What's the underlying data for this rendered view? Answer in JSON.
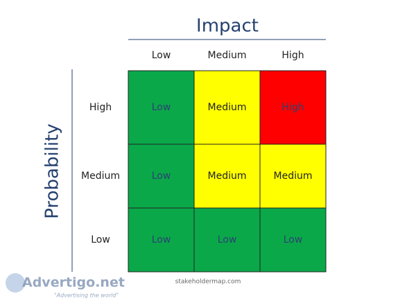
{
  "header": {
    "title": "Impact",
    "columns": [
      "Low",
      "Medium",
      "High"
    ]
  },
  "side": {
    "title": "Probability",
    "rows": [
      "High",
      "Medium",
      "Low"
    ]
  },
  "matrix": {
    "cells": [
      [
        {
          "label": "Low",
          "color": "#0ba84a"
        },
        {
          "label": "Medium",
          "color": "#ffff00"
        },
        {
          "label": "High",
          "color": "#ff0000"
        }
      ],
      [
        {
          "label": "Low",
          "color": "#0ba84a"
        },
        {
          "label": "Medium",
          "color": "#ffff00"
        },
        {
          "label": "Medium",
          "color": "#ffff00"
        }
      ],
      [
        {
          "label": "Low",
          "color": "#0ba84a"
        },
        {
          "label": "Low",
          "color": "#0ba84a"
        },
        {
          "label": "Low",
          "color": "#0ba84a"
        }
      ]
    ]
  },
  "footer": {
    "source": "stakeholdermap.com"
  },
  "watermark": {
    "brand": "Advertigo.net",
    "slogan": "\"Advertising the world\""
  }
}
